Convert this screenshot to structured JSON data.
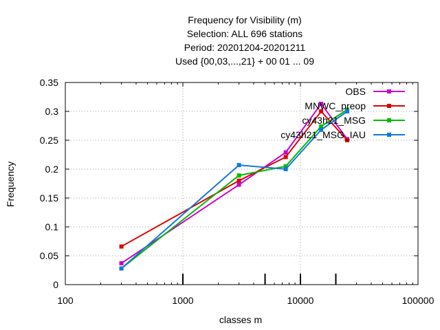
{
  "chart_data": {
    "type": "line",
    "title_lines": [
      "Frequency  for Visibility (m)",
      "Selection: ALL    696 stations",
      "Period: 20201204-20201211",
      "Used {00,03,...,21} + 00 01 ... 09"
    ],
    "xlabel": "classes m",
    "ylabel": "Frequency",
    "x_scale": "log",
    "xlim": [
      100,
      100000
    ],
    "ylim": [
      0,
      0.35
    ],
    "x_tick_labels": [
      "100",
      "1000",
      "10000",
      "100000"
    ],
    "x_tick_values": [
      100,
      1000,
      10000,
      100000
    ],
    "y_tick_labels": [
      "0",
      "0.05",
      "0.1",
      "0.15",
      "0.2",
      "0.25",
      "0.3",
      "0.35"
    ],
    "y_tick_values": [
      0,
      0.05,
      0.1,
      0.15,
      0.2,
      0.25,
      0.3,
      0.35
    ],
    "class_boundary_markers": [
      1000,
      5000,
      10000,
      20000
    ],
    "grid": true,
    "legend_position": "top-right",
    "series": [
      {
        "name": "OBS",
        "color": "#cc00cc",
        "x": [
          300,
          3000,
          7500,
          15000,
          25000
        ],
        "y": [
          0.037,
          0.173,
          0.229,
          0.313,
          0.252
        ]
      },
      {
        "name": "MNWC_preop",
        "color": "#dd0000",
        "x": [
          300,
          3000,
          7500,
          15000,
          25000
        ],
        "y": [
          0.066,
          0.18,
          0.221,
          0.3,
          0.25
        ]
      },
      {
        "name": "cy43h21_MSG",
        "color": "#00bb00",
        "x": [
          300,
          3000,
          7500,
          15000,
          25000
        ],
        "y": [
          0.028,
          0.189,
          0.205,
          0.274,
          0.303
        ]
      },
      {
        "name": "cy43h21_MSG_IAU",
        "color": "#1177dd",
        "x": [
          300,
          3000,
          7500,
          15000,
          25000
        ],
        "y": [
          0.028,
          0.207,
          0.2,
          0.268,
          0.3
        ]
      }
    ]
  }
}
